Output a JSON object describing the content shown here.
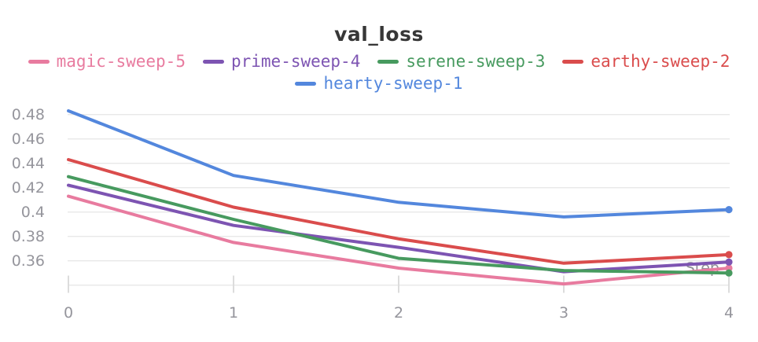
{
  "title": "val_loss",
  "axis": {
    "x_label": "Step",
    "x_ticks": [
      "0",
      "1",
      "2",
      "3",
      "4"
    ],
    "y_ticks": [
      "0.48",
      "0.46",
      "0.44",
      "0.42",
      "0.4",
      "0.38",
      "0.36"
    ]
  },
  "chart_data": {
    "type": "line",
    "title": "val_loss",
    "xlabel": "Step",
    "ylabel": "",
    "x": [
      0,
      1,
      2,
      3,
      4
    ],
    "series": [
      {
        "name": "magic-sweep-5",
        "color": "#E87B9F",
        "values": [
          0.413,
          0.375,
          0.354,
          0.341,
          0.354
        ]
      },
      {
        "name": "prime-sweep-4",
        "color": "#7D54B2",
        "values": [
          0.422,
          0.389,
          0.371,
          0.351,
          0.359
        ]
      },
      {
        "name": "serene-sweep-3",
        "color": "#479A5F",
        "values": [
          0.429,
          0.394,
          0.362,
          0.352,
          0.35
        ]
      },
      {
        "name": "earthy-sweep-2",
        "color": "#DA4C4C",
        "values": [
          0.443,
          0.404,
          0.378,
          0.358,
          0.365
        ]
      },
      {
        "name": "hearty-sweep-1",
        "color": "#5387DD",
        "values": [
          0.483,
          0.43,
          0.408,
          0.396,
          0.402
        ]
      }
    ],
    "legend_rows": [
      [
        "magic-sweep-5",
        "prime-sweep-4",
        "serene-sweep-3",
        "earthy-sweep-2"
      ],
      [
        "hearty-sweep-1"
      ]
    ],
    "legend_position": "top",
    "grid": true,
    "end_markers": true,
    "y_tick_values": [
      0.48,
      0.46,
      0.44,
      0.42,
      0.4,
      0.38,
      0.36
    ],
    "y_grid_values": [
      0.48,
      0.46,
      0.44,
      0.42,
      0.4,
      0.38,
      0.36,
      0.34
    ],
    "xlim": [
      0,
      4
    ],
    "ylim": [
      0.337,
      0.488
    ]
  }
}
